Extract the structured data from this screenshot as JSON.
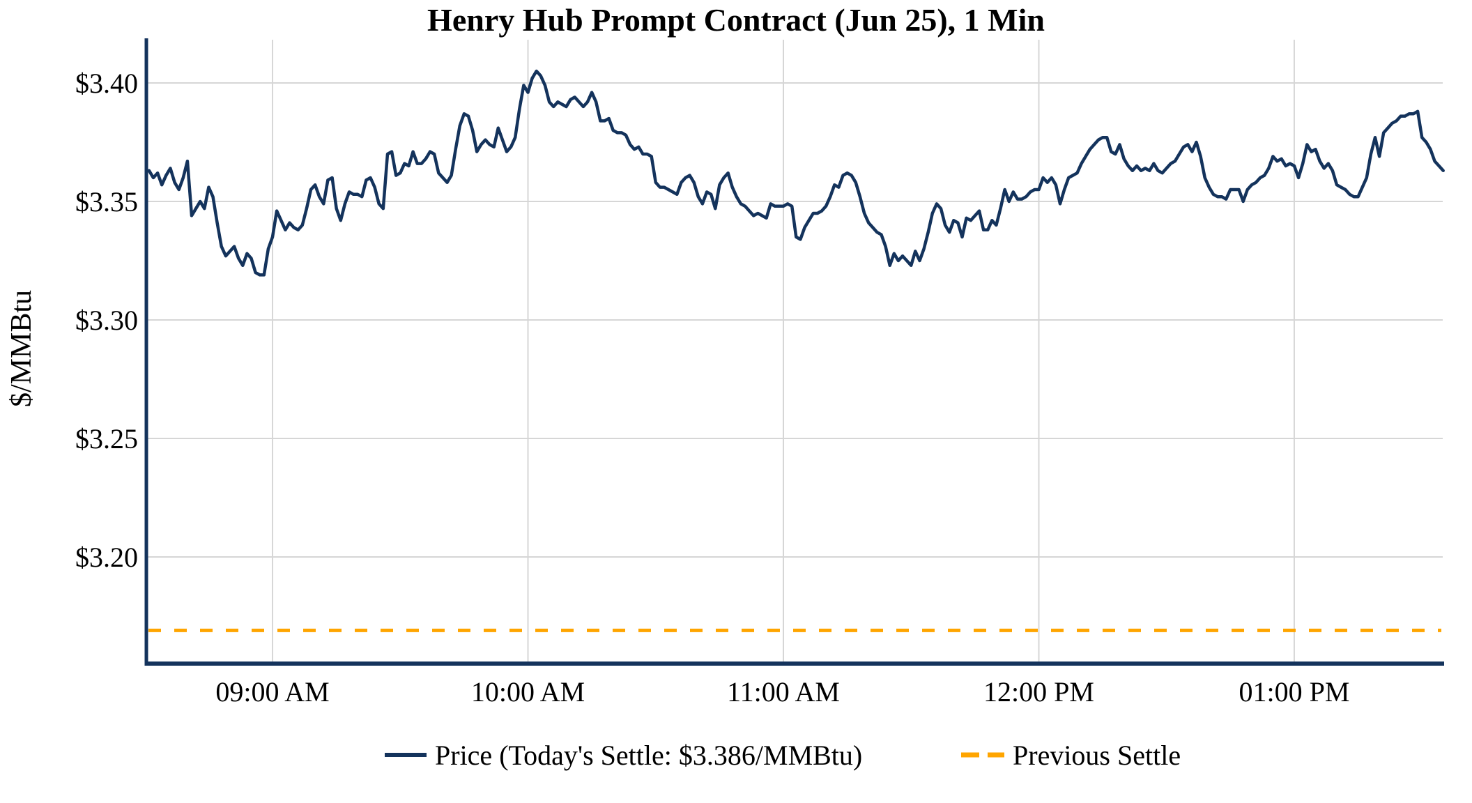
{
  "chart_data": {
    "type": "line",
    "title": "Henry Hub Prompt Contract (Jun 25), 1 Min",
    "ylabel": "$/MMBtu",
    "x_axis": {
      "tick_labels": [
        "09:00 AM",
        "10:00 AM",
        "11:00 AM",
        "12:00 PM",
        "01:00 PM"
      ],
      "tick_minutes_after_0830": [
        30,
        90,
        150,
        210,
        270
      ],
      "data_start": "08:31 AM",
      "data_end": "01:35 PM"
    },
    "y_axis": {
      "tick_labels": [
        "$3.40",
        "$3.35",
        "$3.30",
        "$3.25",
        "$3.20"
      ],
      "tick_values": [
        3.4,
        3.35,
        3.3,
        3.25,
        3.2
      ],
      "range": [
        3.155,
        3.418
      ],
      "grid": true
    },
    "legend": {
      "position": "bottom-center",
      "price_label": "Price (Today's Settle: $3.386/MMBtu)",
      "previous_settle_label": "Previous Settle"
    },
    "today_settle_usd_mmbtu": 3.386,
    "previous_settle_usd_mmbtu": 3.169,
    "series": {
      "name": "Price",
      "start_time": "08:31 AM",
      "interval_min": 1,
      "unit": "$/MMBtu",
      "values": [
        3.363,
        3.36,
        3.362,
        3.357,
        3.361,
        3.364,
        3.358,
        3.355,
        3.36,
        3.367,
        3.344,
        3.347,
        3.35,
        3.347,
        3.356,
        3.352,
        3.341,
        3.331,
        3.327,
        3.329,
        3.331,
        3.326,
        3.323,
        3.328,
        3.326,
        3.32,
        3.319,
        3.319,
        3.33,
        3.335,
        3.346,
        3.342,
        3.338,
        3.341,
        3.339,
        3.338,
        3.34,
        3.347,
        3.355,
        3.357,
        3.352,
        3.349,
        3.359,
        3.36,
        3.347,
        3.342,
        3.349,
        3.354,
        3.353,
        3.353,
        3.352,
        3.359,
        3.36,
        3.356,
        3.349,
        3.347,
        3.37,
        3.371,
        3.361,
        3.362,
        3.366,
        3.365,
        3.371,
        3.366,
        3.366,
        3.368,
        3.371,
        3.37,
        3.362,
        3.36,
        3.358,
        3.361,
        3.372,
        3.382,
        3.387,
        3.386,
        3.38,
        3.371,
        3.374,
        3.376,
        3.374,
        3.373,
        3.381,
        3.376,
        3.371,
        3.373,
        3.377,
        3.389,
        3.399,
        3.396,
        3.402,
        3.405,
        3.403,
        3.399,
        3.392,
        3.39,
        3.392,
        3.391,
        3.39,
        3.393,
        3.394,
        3.392,
        3.39,
        3.392,
        3.396,
        3.392,
        3.384,
        3.384,
        3.385,
        3.38,
        3.379,
        3.379,
        3.378,
        3.374,
        3.372,
        3.373,
        3.37,
        3.37,
        3.369,
        3.358,
        3.356,
        3.356,
        3.355,
        3.354,
        3.353,
        3.358,
        3.36,
        3.361,
        3.358,
        3.352,
        3.349,
        3.354,
        3.353,
        3.347,
        3.357,
        3.36,
        3.362,
        3.356,
        3.352,
        3.349,
        3.348,
        3.346,
        3.344,
        3.345,
        3.344,
        3.343,
        3.349,
        3.348,
        3.348,
        3.348,
        3.349,
        3.348,
        3.335,
        3.334,
        3.339,
        3.342,
        3.345,
        3.345,
        3.346,
        3.348,
        3.352,
        3.357,
        3.356,
        3.361,
        3.362,
        3.361,
        3.358,
        3.352,
        3.345,
        3.341,
        3.339,
        3.337,
        3.336,
        3.331,
        3.323,
        3.328,
        3.325,
        3.327,
        3.325,
        3.323,
        3.329,
        3.325,
        3.33,
        3.337,
        3.345,
        3.349,
        3.347,
        3.34,
        3.337,
        3.342,
        3.341,
        3.335,
        3.343,
        3.342,
        3.344,
        3.346,
        3.338,
        3.338,
        3.342,
        3.34,
        3.347,
        3.355,
        3.35,
        3.354,
        3.351,
        3.351,
        3.352,
        3.354,
        3.355,
        3.355,
        3.36,
        3.358,
        3.36,
        3.357,
        3.349,
        3.355,
        3.36,
        3.361,
        3.362,
        3.366,
        3.369,
        3.372,
        3.374,
        3.376,
        3.377,
        3.377,
        3.371,
        3.37,
        3.374,
        3.368,
        3.365,
        3.363,
        3.365,
        3.363,
        3.364,
        3.363,
        3.366,
        3.363,
        3.362,
        3.364,
        3.366,
        3.367,
        3.37,
        3.373,
        3.374,
        3.371,
        3.375,
        3.369,
        3.36,
        3.356,
        3.353,
        3.352,
        3.352,
        3.351,
        3.355,
        3.355,
        3.355,
        3.35,
        3.355,
        3.357,
        3.358,
        3.36,
        3.361,
        3.364,
        3.369,
        3.367,
        3.368,
        3.365,
        3.366,
        3.365,
        3.36,
        3.366,
        3.374,
        3.371,
        3.372,
        3.367,
        3.364,
        3.366,
        3.363,
        3.357,
        3.356,
        3.355,
        3.353,
        3.352,
        3.352,
        3.356,
        3.36,
        3.37,
        3.377,
        3.369,
        3.379,
        3.381,
        3.383,
        3.384,
        3.386,
        3.386,
        3.387,
        3.387,
        3.388,
        3.377,
        3.375,
        3.372,
        3.367,
        3.365,
        3.363
      ]
    },
    "colors": {
      "price": "#14335c",
      "previous_settle": "#ffa500",
      "grid": "#d6d6d6",
      "text": "#000000",
      "background": "#ffffff"
    }
  }
}
